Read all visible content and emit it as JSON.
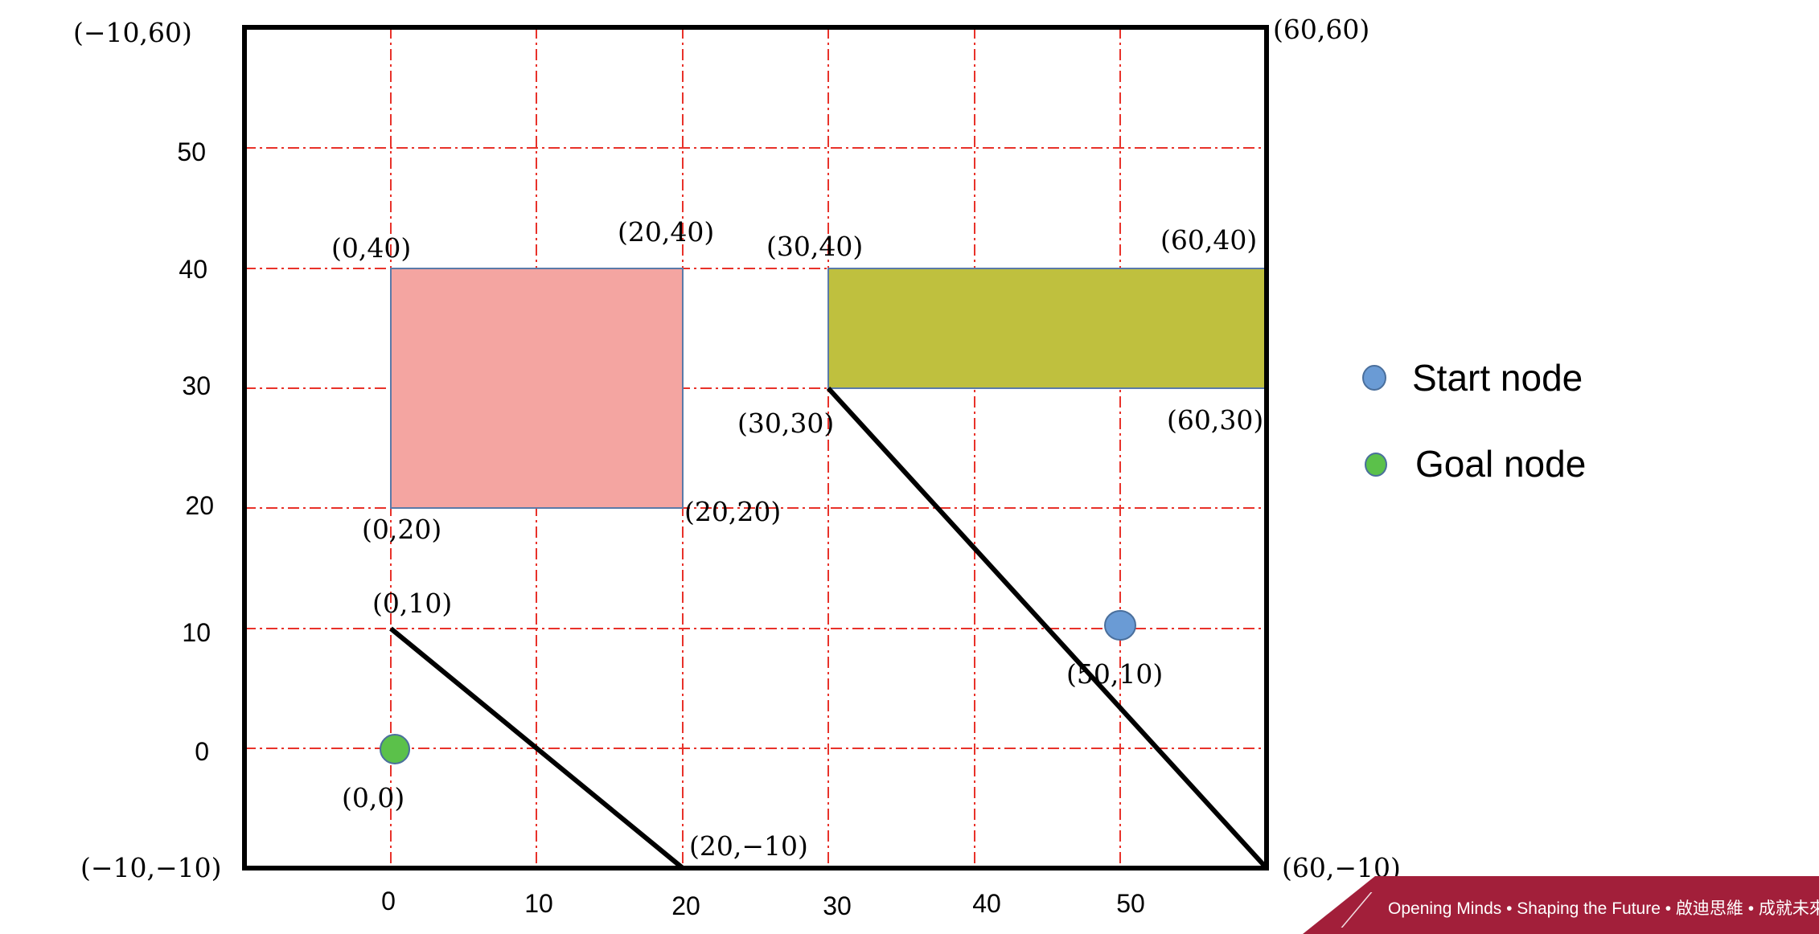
{
  "x_ticks": [
    "0",
    "10",
    "20",
    "30",
    "40",
    "50"
  ],
  "y_ticks": [
    "50",
    "40",
    "30",
    "20",
    "10",
    "0"
  ],
  "corner_labels": {
    "top_left": "(−10,60)",
    "top_right": "(60,60)",
    "bottom_left": "(−10,−10)",
    "bottom_right": "(60,−10)"
  },
  "obstacle_rect_1": {
    "fill": "#f4a5a1",
    "labels": {
      "top_left": "(0,40)",
      "top_right": "(20,40)",
      "bottom_left": "(0,20)",
      "bottom_right": "(20,20)"
    }
  },
  "obstacle_rect_2": {
    "fill": "#bfc03e",
    "labels": {
      "top_left": "(30,40)",
      "top_right": "(60,40)",
      "bottom_left": "(30,30)",
      "bottom_right": "(60,30)"
    }
  },
  "wall_1": {
    "start_label": "(0,10)",
    "end_label": "(20,−10)"
  },
  "wall_2": {
    "start_label": "(30,30)",
    "end_label": "(60,−10)"
  },
  "start_node": {
    "label": "(50,10)",
    "color": "#6a9bd5"
  },
  "goal_node": {
    "label": "(0,0)",
    "color": "#5bc14a"
  },
  "legend": {
    "start": "Start node",
    "goal": "Goal node"
  },
  "grid_color": "#e8322a",
  "footer_banner": {
    "text": "Opening Minds • Shaping the Future • 啟迪思維 • 成就未來",
    "color": "#a21f3a"
  }
}
